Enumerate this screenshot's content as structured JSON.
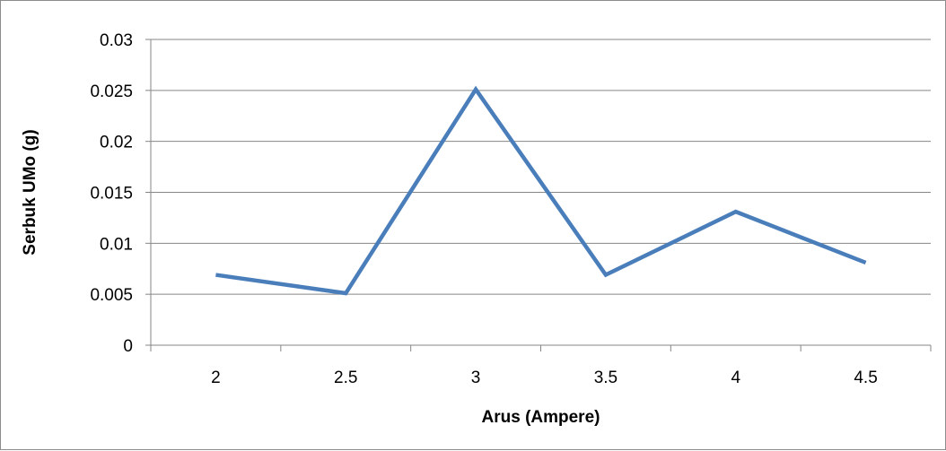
{
  "chart_data": {
    "type": "line",
    "title": "",
    "xlabel": "Arus (Ampere)",
    "ylabel": "Serbuk UMo (g)",
    "categories": [
      "2",
      "2.5",
      "3",
      "3.5",
      "4",
      "4.5"
    ],
    "yticks": [
      "0",
      "0.005",
      "0.01",
      "0.015",
      "0.02",
      "0.025",
      "0.03"
    ],
    "ylim": [
      0,
      0.03
    ],
    "grid": true,
    "legend": "none",
    "series": [
      {
        "values": [
          0.0069,
          0.0051,
          0.0251,
          0.0069,
          0.0131,
          0.0081
        ],
        "color": "#4a7ebb"
      }
    ],
    "colors": {
      "gridline": "#868686",
      "axis": "#868686",
      "series": "#4a7ebb"
    }
  }
}
